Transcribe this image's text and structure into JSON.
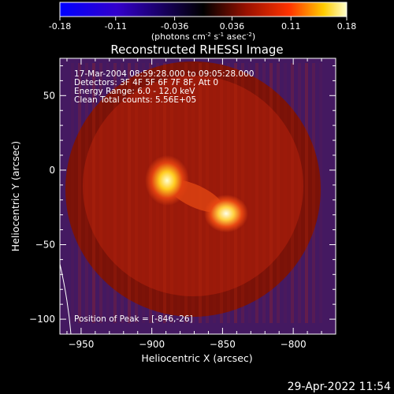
{
  "chart_data": {
    "type": "heatmap",
    "title": "Reconstructed RHESSI Image",
    "xlabel": "Heliocentric X (arcsec)",
    "ylabel": "Heliocentric Y (arcsec)",
    "xlim": [
      -965,
      -770
    ],
    "ylim": [
      -110,
      75
    ],
    "x_ticks": [
      -950,
      -900,
      -850,
      -800
    ],
    "y_ticks": [
      -100,
      -50,
      0,
      50
    ],
    "colorbar": {
      "range": [
        -0.18,
        0.18
      ],
      "ticks": [
        -0.18,
        -0.11,
        -0.036,
        0.036,
        0.11,
        0.18
      ],
      "tick_labels": [
        "-0.18",
        "-0.11",
        "-0.036",
        "0.036",
        "0.11",
        "0.18"
      ],
      "label_main": "(photons cm",
      "label_exp1": "-2",
      "label_mid1": " s",
      "label_exp2": "-1",
      "label_mid2": " asec",
      "label_exp3": "-2",
      "label_end": ")"
    },
    "annotations": [
      "17-Mar-2004 08:59:28.000 to 09:05:28.000",
      "Detectors: 3F 4F 5F 6F 7F 8F, Att 0",
      "Energy Range: 6.0 - 12.0 keV",
      "Clean    Total counts: 5.56E+05"
    ],
    "peak_label": "Position of Peak = [-846,-26]",
    "sources": [
      {
        "x": -891,
        "y": -4,
        "peak": 0.16
      },
      {
        "x": -846,
        "y": -26,
        "peak": 0.18
      }
    ],
    "limb_circle": {
      "center_x": -868,
      "center_y": -22,
      "radius": 85
    }
  },
  "footer": {
    "timestamp": "29-Apr-2022 11:54"
  }
}
